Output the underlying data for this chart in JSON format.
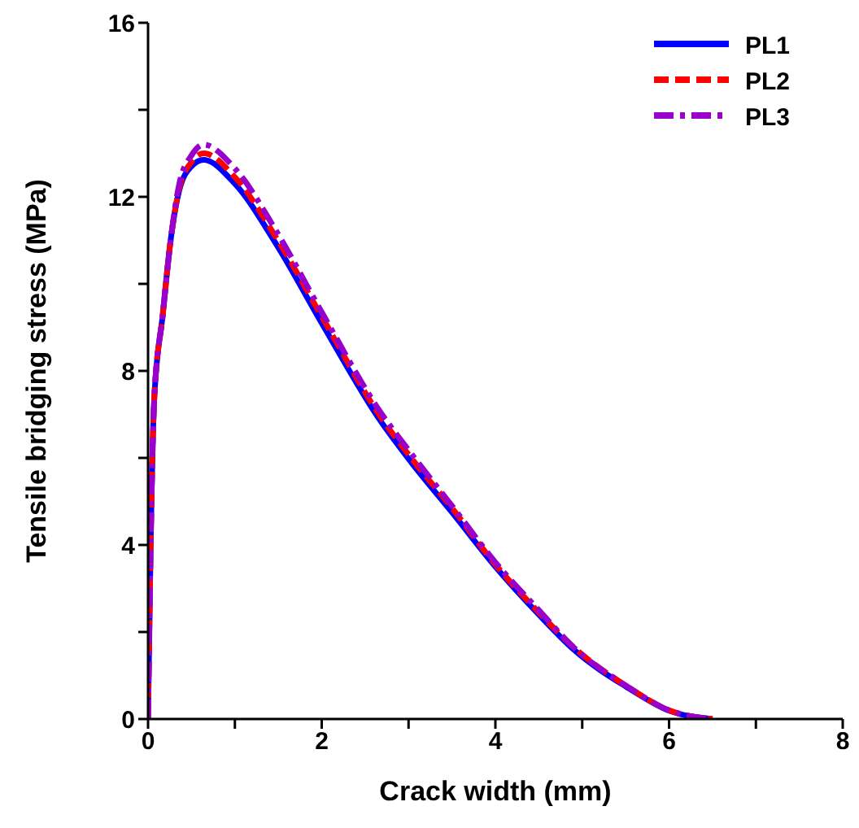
{
  "chart_data": {
    "type": "line",
    "xlabel": "Crack width (mm)",
    "ylabel": "Tensile bridging stress (MPa)",
    "xlim": [
      0,
      8
    ],
    "xticks": [
      0,
      {
        "value": 1,
        "label": null
      },
      2,
      {
        "value": 3,
        "label": null
      },
      4,
      {
        "value": 5,
        "label": null
      },
      6,
      {
        "value": 7,
        "label": null
      },
      8
    ],
    "ylim": [
      0,
      16
    ],
    "yticks": [
      0,
      {
        "value": 2,
        "label": null
      },
      4,
      {
        "value": 6,
        "label": null
      },
      8,
      {
        "value": 10,
        "label": null
      },
      12,
      {
        "value": 14,
        "label": null
      },
      16
    ],
    "grid": false,
    "legend": "top right",
    "marker": "none",
    "series": [
      {
        "name": "PL1",
        "color": "#0000ff",
        "line_style": "solid",
        "x": [
          0,
          0.03,
          0.07,
          0.17,
          0.26,
          0.36,
          0.5,
          0.64,
          1.0,
          1.48,
          2.0,
          2.66,
          3.03,
          3.5,
          4.0,
          4.5,
          4.9,
          5.54,
          6.0,
          6.5
        ],
        "values": [
          0,
          4,
          7.3,
          9.3,
          11.0,
          12.15,
          12.7,
          12.85,
          12.3,
          10.9,
          9.1,
          6.9,
          5.9,
          4.75,
          3.5,
          2.4,
          1.6,
          0.7,
          0.19,
          0
        ]
      },
      {
        "name": "PL2",
        "color": "#ff0000",
        "line_style": "dashed",
        "x": [
          0,
          0.03,
          0.07,
          0.17,
          0.26,
          0.36,
          0.5,
          0.64,
          1.0,
          1.48,
          2.0,
          2.66,
          3.03,
          3.5,
          4.0,
          4.5,
          4.9,
          5.54,
          6.0,
          6.5
        ],
        "values": [
          0,
          4,
          7.3,
          9.3,
          11.0,
          12.2,
          12.8,
          13.0,
          12.45,
          11.05,
          9.25,
          7.0,
          6.0,
          4.85,
          3.55,
          2.45,
          1.65,
          0.72,
          0.2,
          0
        ]
      },
      {
        "name": "PL3",
        "color": "#9900cc",
        "line_style": "dashdot",
        "x": [
          0,
          0.03,
          0.07,
          0.17,
          0.26,
          0.36,
          0.5,
          0.64,
          1.0,
          1.48,
          2.0,
          2.66,
          3.03,
          3.5,
          4.0,
          4.5,
          4.9,
          5.54,
          6.0,
          6.5
        ],
        "values": [
          0,
          4,
          7.3,
          9.3,
          11.0,
          12.3,
          12.95,
          13.2,
          12.65,
          11.2,
          9.35,
          7.1,
          6.1,
          4.9,
          3.6,
          2.5,
          1.65,
          0.72,
          0.2,
          0
        ]
      }
    ]
  }
}
